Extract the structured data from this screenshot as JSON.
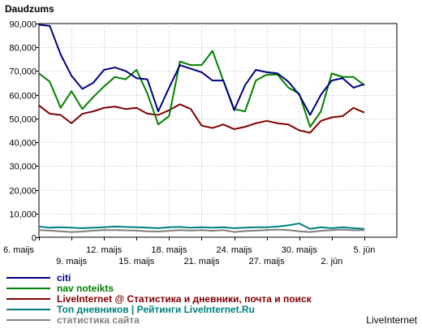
{
  "chart_data": {
    "type": "line",
    "ylabel": "Daudzums",
    "ylim": [
      0,
      90000
    ],
    "yticks": [
      0,
      10000,
      20000,
      30000,
      40000,
      50000,
      60000,
      70000,
      80000,
      90000
    ],
    "ytick_labels": [
      "0",
      "10,000",
      "20,000",
      "30,000",
      "40,000",
      "50,000",
      "60,000",
      "70,000",
      "80,000",
      "90,000"
    ],
    "xlim": [
      0,
      33
    ],
    "x_ticks_row1": [
      {
        "x": 0,
        "label": "6. maijs"
      },
      {
        "x": 6,
        "label": "12. maijs"
      },
      {
        "x": 12,
        "label": "18. maijs"
      },
      {
        "x": 18,
        "label": "24. maijs"
      },
      {
        "x": 24,
        "label": "30. maijs"
      },
      {
        "x": 30,
        "label": "5. jūn"
      }
    ],
    "x_ticks_row2": [
      {
        "x": 3,
        "label": "9. maijs"
      },
      {
        "x": 9,
        "label": "15. maijs"
      },
      {
        "x": 15,
        "label": "21. maijs"
      },
      {
        "x": 21,
        "label": "27. maijs"
      },
      {
        "x": 27,
        "label": "2. jūn"
      }
    ],
    "grid": true,
    "legend_position": "bottom",
    "series": [
      {
        "name": "citi",
        "color": "#000080",
        "values": [
          89500,
          89000,
          77000,
          68000,
          62500,
          65000,
          70500,
          71500,
          70000,
          67000,
          66500,
          53000,
          63000,
          72500,
          71000,
          69500,
          66000,
          66000,
          53500,
          64000,
          70500,
          69500,
          69000,
          65500,
          60000,
          51500,
          60000,
          66000,
          67000,
          63000,
          64500
        ]
      },
      {
        "name": "nav noteikts",
        "color": "#008000",
        "values": [
          69000,
          65500,
          54500,
          61500,
          54000,
          59000,
          63500,
          67500,
          66500,
          70500,
          60500,
          47500,
          51000,
          74000,
          72500,
          72500,
          78500,
          66000,
          54000,
          53000,
          66000,
          68500,
          68500,
          63000,
          60500,
          46500,
          53000,
          69000,
          67500,
          67500,
          64000
        ]
      },
      {
        "name": "LiveInternet @ Статистика и дневники, почта и поиск",
        "color": "#800000",
        "values": [
          55500,
          52000,
          51500,
          48000,
          52000,
          53000,
          54500,
          55000,
          54000,
          54500,
          52000,
          51500,
          53500,
          56000,
          54000,
          47000,
          46000,
          47500,
          45500,
          46500,
          48000,
          49000,
          48000,
          47500,
          45000,
          44000,
          49000,
          50500,
          51000,
          54500,
          52500
        ]
      },
      {
        "name": "Топ дневников | Рейтинги LiveInternet.Ru",
        "color": "#008080",
        "values": [
          4500,
          4000,
          4200,
          4000,
          3800,
          4000,
          4200,
          4500,
          4300,
          4200,
          4000,
          3800,
          4200,
          4300,
          4000,
          4200,
          4000,
          4200,
          3800,
          4000,
          4200,
          4200,
          4500,
          5000,
          5800,
          3500,
          4200,
          3800,
          4200,
          3800,
          3500
        ]
      },
      {
        "name": "статистика сайта",
        "color": "#808080",
        "values": [
          3000,
          2800,
          2500,
          2200,
          2400,
          2800,
          3000,
          3000,
          2900,
          2800,
          2500,
          2400,
          2700,
          3000,
          2800,
          3000,
          2700,
          3000,
          2200,
          2600,
          2800,
          3000,
          3200,
          3000,
          2500,
          2200,
          2700,
          3000,
          3200,
          2900,
          3000
        ]
      }
    ]
  },
  "brand": "LiveInternet"
}
